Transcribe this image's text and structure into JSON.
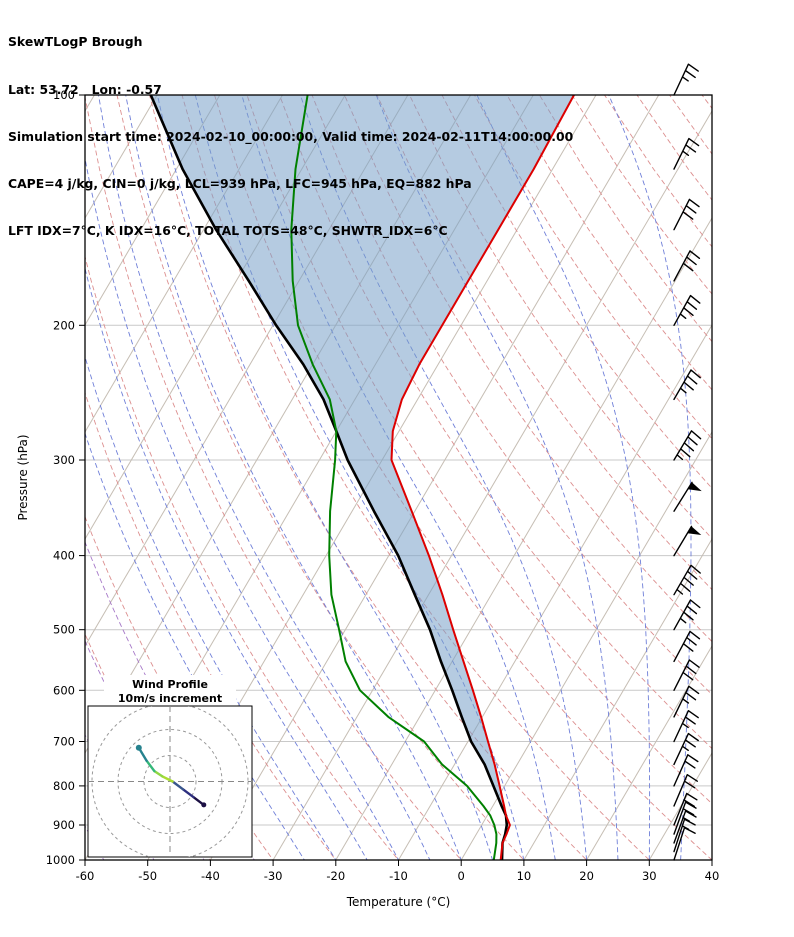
{
  "header": {
    "title": "SkewTLogP Brough",
    "location": "Lat: 53.72   Lon: -0.57",
    "times": "Simulation start time: 2024-02-10_00:00:00, Valid time: 2024-02-11T14:00:00.00",
    "indices1": "CAPE=4 j/kg, CIN=0 j/kg, LCL=939 hPa, LFC=945 hPa, EQ=882 hPa",
    "indices2": "LFT IDX=7°C, K IDX=16°C, TOTAL TOTS=48°C, SHWTR_IDX=6°C"
  },
  "chart_data": {
    "type": "skewt-logp",
    "title": "SkewTLogP Brough",
    "xlabel": "Temperature (°C)",
    "ylabel": "Pressure (hPa)",
    "xlim": [
      -60,
      40
    ],
    "x_ticks": [
      -60,
      -50,
      -40,
      -30,
      -20,
      -10,
      0,
      10,
      20,
      30,
      40
    ],
    "p_ticks": [
      100,
      200,
      300,
      400,
      500,
      600,
      700,
      800,
      900,
      1000
    ],
    "p_range": [
      100,
      1050
    ],
    "skew": 0.586,
    "indices": {
      "cape_jkg": 4,
      "cin_jkg": 0,
      "lcl_hpa": 939,
      "lfc_hpa": 945,
      "eq_hpa": 882,
      "lifted_index_c": 7,
      "k_index_c": 16,
      "total_totals_c": 48,
      "showalter_index_c": 6
    },
    "sounding": {
      "pressure_hpa": [
        1000,
        950,
        925,
        900,
        875,
        850,
        800,
        750,
        700,
        650,
        600,
        550,
        500,
        450,
        400,
        350,
        300,
        275,
        250,
        225,
        200,
        175,
        150,
        125,
        100
      ],
      "temperature_c": [
        6.3,
        5.0,
        4.8,
        4.5,
        3.0,
        1.8,
        -0.8,
        -3.6,
        -6.8,
        -10.2,
        -14.0,
        -18.2,
        -22.8,
        -27.8,
        -33.6,
        -40.5,
        -48.5,
        -51.0,
        -52.5,
        -53.0,
        -53.0,
        -53.0,
        -53.0,
        -53.0,
        -53.5
      ],
      "dewpoint_c": [
        5.2,
        4.0,
        3.2,
        2.0,
        0.5,
        -1.5,
        -6.0,
        -12.0,
        -17.0,
        -25.0,
        -32.0,
        -37.0,
        -41.0,
        -45.5,
        -49.5,
        -53.5,
        -57.5,
        -60.0,
        -64.0,
        -70.0,
        -76.0,
        -81.0,
        -86.0,
        -91.0,
        -96.0
      ],
      "parcel_c": [
        6.5,
        5.0,
        4.6,
        4.0,
        3.0,
        1.4,
        -1.8,
        -5.2,
        -9.5,
        -13.3,
        -17.3,
        -21.8,
        -26.5,
        -32.2,
        -38.5,
        -46.5,
        -55.5,
        -60.0,
        -65.0,
        -71.5,
        -79.5,
        -88.0,
        -98.0,
        -109.0,
        -121.0
      ]
    },
    "barbs": [
      {
        "p": 1000,
        "spd_kt": 10,
        "dir_deg": 198
      },
      {
        "p": 975,
        "spd_kt": 15,
        "dir_deg": 198
      },
      {
        "p": 950,
        "spd_kt": 15,
        "dir_deg": 200
      },
      {
        "p": 925,
        "spd_kt": 20,
        "dir_deg": 200
      },
      {
        "p": 900,
        "spd_kt": 20,
        "dir_deg": 202
      },
      {
        "p": 850,
        "spd_kt": 20,
        "dir_deg": 203
      },
      {
        "p": 800,
        "spd_kt": 20,
        "dir_deg": 204
      },
      {
        "p": 750,
        "spd_kt": 25,
        "dir_deg": 205
      },
      {
        "p": 700,
        "spd_kt": 25,
        "dir_deg": 205
      },
      {
        "p": 650,
        "spd_kt": 25,
        "dir_deg": 206
      },
      {
        "p": 600,
        "spd_kt": 30,
        "dir_deg": 207
      },
      {
        "p": 550,
        "spd_kt": 30,
        "dir_deg": 208
      },
      {
        "p": 500,
        "spd_kt": 35,
        "dir_deg": 209
      },
      {
        "p": 450,
        "spd_kt": 45,
        "dir_deg": 210
      },
      {
        "p": 400,
        "spd_kt": 50,
        "dir_deg": 211
      },
      {
        "p": 350,
        "spd_kt": 50,
        "dir_deg": 212
      },
      {
        "p": 300,
        "spd_kt": 45,
        "dir_deg": 211
      },
      {
        "p": 250,
        "spd_kt": 35,
        "dir_deg": 210
      },
      {
        "p": 200,
        "spd_kt": 35,
        "dir_deg": 209
      },
      {
        "p": 175,
        "spd_kt": 30,
        "dir_deg": 208
      },
      {
        "p": 150,
        "spd_kt": 30,
        "dir_deg": 207
      },
      {
        "p": 125,
        "spd_kt": 25,
        "dir_deg": 206
      },
      {
        "p": 100,
        "spd_kt": 25,
        "dir_deg": 205
      }
    ],
    "hodograph": {
      "title_line1": "Wind Profile",
      "title_line2": "10m/s increment",
      "ring_interval_ms": 10,
      "rings_ms": [
        10,
        20,
        30
      ],
      "levels_hpa": [
        1000,
        925,
        850,
        700,
        500,
        400,
        300,
        200
      ],
      "u_ms": [
        13,
        9,
        5,
        1,
        -3,
        -6,
        -9,
        -12
      ],
      "v_ms": [
        -9,
        -6,
        -3,
        0,
        2,
        4,
        8,
        13
      ],
      "segment_colors": [
        "#1c1044",
        "#2d2f7f",
        "#39568c",
        "#aadc32",
        "#8fd744",
        "#35b779",
        "#26828e"
      ],
      "marker_color": "#26828e",
      "start_marker_color": "#1c1044"
    },
    "background": {
      "isotherms_c": {
        "min": -140,
        "max": 40,
        "step": 10
      },
      "dry_adiabats_c": {
        "min": -40,
        "max": 200,
        "step": 10
      },
      "moist_adiabats_c": [
        -25,
        -20,
        -15,
        -10,
        -5,
        0,
        5,
        10,
        15,
        20,
        25,
        30,
        35,
        40
      ],
      "cold_moist_adiabats_c": [
        -65,
        -57,
        -49,
        -41,
        -33
      ]
    },
    "style": {
      "isobar_color": "#c9c9c9",
      "isotherm_color": "#c6beb4",
      "dry_adiabat_color": "#dc8f8f",
      "moist_adiabat_color": "#6f7fd8",
      "cold_moist_adiabat_color": "#a678c8",
      "temperature_color": "#dd0000",
      "dewpoint_color": "#008000",
      "parcel_color": "#000000",
      "shade_color": "rgba(120,160,200,0.55)",
      "barb_color": "#000000",
      "frame_color": "#000000"
    }
  }
}
